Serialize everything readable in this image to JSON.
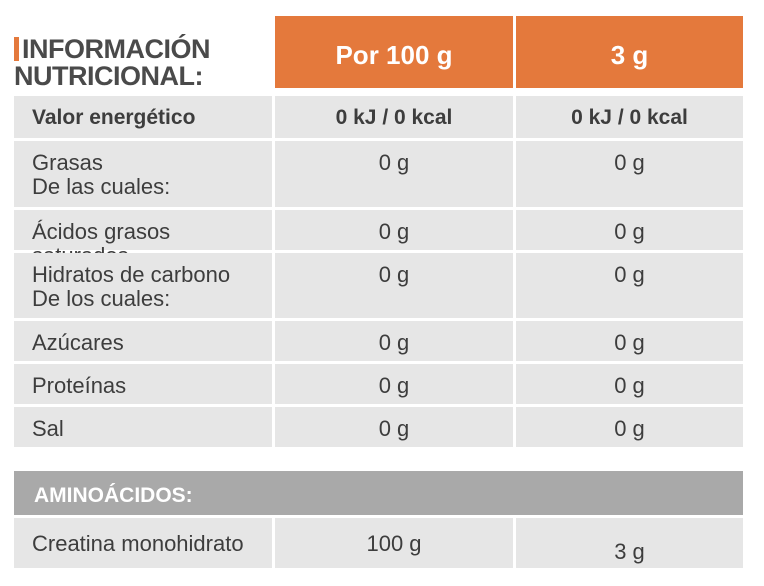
{
  "header": {
    "title_line1": "INFORMACIÓN",
    "title_line2": "NUTRICIONAL:",
    "col1": "Por 100 g",
    "col2": "3 g"
  },
  "rows": [
    {
      "label": "Valor energético",
      "label2": "",
      "v1": "0 kJ / 0 kcal",
      "v2": "0 kJ / 0 kcal"
    },
    {
      "label": "Grasas",
      "label2": "De las cuales:",
      "v1": "0 g",
      "v2": "0 g"
    },
    {
      "label": "Ácidos grasos saturados",
      "label2": "",
      "v1": "0 g",
      "v2": "0 g"
    },
    {
      "label": "Hidratos de carbono",
      "label2": "De los cuales:",
      "v1": "0 g",
      "v2": "0 g"
    },
    {
      "label": "Azúcares",
      "label2": "",
      "v1": "0 g",
      "v2": "0 g"
    },
    {
      "label": "Proteínas",
      "label2": "",
      "v1": "0 g",
      "v2": "0 g"
    },
    {
      "label": "Sal",
      "label2": "",
      "v1": "0 g",
      "v2": "0 g"
    }
  ],
  "amino": {
    "title": "AMINOÁCIDOS:",
    "rows": [
      {
        "label": "Creatina monohidrato",
        "v1": "100 g",
        "v2": "3 g"
      }
    ]
  },
  "colors": {
    "accent": "#e4793c",
    "row_bg": "#e6e6e6",
    "amino_header_bg": "#a9a9a9"
  }
}
